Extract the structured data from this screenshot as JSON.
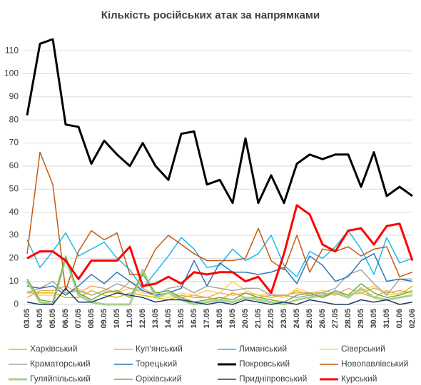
{
  "chart_data": {
    "type": "line",
    "title": "Кількість російських атак за напрямками",
    "categories": [
      "03.05",
      "04.05",
      "05.05",
      "06.05",
      "07.05",
      "08.05",
      "09.05",
      "10.05",
      "11.05",
      "12.05",
      "13.05",
      "14.05",
      "15.05",
      "16.05",
      "17.05",
      "18.05",
      "19.05",
      "20.05",
      "21.05",
      "22.05",
      "23.05",
      "24.05",
      "25.05",
      "26.05",
      "27.05",
      "28.05",
      "29.05",
      "30.05",
      "31.05",
      "01.06",
      "02.06"
    ],
    "ylim": [
      0,
      115
    ],
    "yticks": [
      0,
      10,
      20,
      30,
      40,
      50,
      60,
      70,
      80,
      90,
      100,
      110
    ],
    "grid": true,
    "series": [
      {
        "name": "Харківський",
        "color": "#e6b800",
        "width": 1.5,
        "values": [
          5,
          5,
          5,
          3,
          3,
          6,
          4,
          3,
          5,
          4,
          3,
          2,
          4,
          3,
          3,
          2,
          5,
          3,
          3,
          4,
          3,
          6,
          4,
          3,
          5,
          4,
          5,
          3,
          6,
          4,
          8
        ]
      },
      {
        "name": "Куп'янський",
        "color": "#f4a46a",
        "width": 1.5,
        "values": [
          3,
          6,
          6,
          8,
          5,
          8,
          7,
          5,
          10,
          7,
          4,
          5,
          3,
          4,
          3,
          5,
          4,
          5,
          4,
          3,
          4,
          5,
          5,
          5,
          4,
          7,
          5,
          7,
          5,
          6,
          5
        ]
      },
      {
        "name": "Лиманський",
        "color": "#1fb8e8",
        "width": 1.5,
        "values": [
          28,
          16,
          23,
          31,
          21,
          24,
          27,
          20,
          15,
          7,
          14,
          21,
          29,
          24,
          16,
          17,
          24,
          19,
          22,
          30,
          17,
          12,
          23,
          20,
          25,
          32,
          24,
          13,
          29,
          18,
          20
        ]
      },
      {
        "name": "Сіверський",
        "color": "#ffd34d",
        "width": 1.5,
        "values": [
          6,
          4,
          4,
          5,
          7,
          4,
          6,
          5,
          7,
          5,
          4,
          3,
          5,
          4,
          6,
          5,
          10,
          6,
          4,
          5,
          3,
          7,
          5,
          6,
          5,
          4,
          6,
          8,
          4,
          5,
          5
        ]
      },
      {
        "name": "Краматорський",
        "color": "#a6a6a6",
        "width": 1.5,
        "values": [
          5,
          7,
          10,
          5,
          6,
          4,
          6,
          9,
          7,
          6,
          4,
          7,
          8,
          5,
          8,
          7,
          6,
          7,
          7,
          4,
          4,
          3,
          4,
          5,
          7,
          13,
          15,
          9,
          4,
          11,
          11
        ]
      },
      {
        "name": "Торецький",
        "color": "#2e75b6",
        "width": 1.5,
        "values": [
          8,
          7,
          8,
          4,
          8,
          13,
          9,
          14,
          10,
          6,
          4,
          5,
          7,
          19,
          8,
          18,
          14,
          14,
          13,
          14,
          16,
          9,
          21,
          17,
          10,
          12,
          19,
          22,
          10,
          11,
          10
        ]
      },
      {
        "name": "Покровський",
        "color": "#000000",
        "width": 3,
        "values": [
          82,
          113,
          115,
          78,
          77,
          61,
          71,
          65,
          60,
          70,
          60,
          54,
          74,
          75,
          52,
          54,
          44,
          72,
          44,
          56,
          44,
          61,
          65,
          63,
          65,
          65,
          51,
          66,
          47,
          51,
          47
        ]
      },
      {
        "name": "Новопавлівський",
        "color": "#c55a11",
        "width": 1.5,
        "values": [
          22,
          66,
          52,
          6,
          23,
          32,
          28,
          31,
          13,
          13,
          24,
          30,
          26,
          22,
          19,
          19,
          19,
          20,
          33,
          19,
          15,
          30,
          14,
          24,
          23,
          25,
          21,
          24,
          25,
          12,
          14
        ]
      },
      {
        "name": "Гуляйпільський",
        "color": "#a9d18e",
        "width": 3,
        "values": [
          10,
          1,
          0,
          20,
          4,
          1,
          0,
          0,
          0,
          15,
          3,
          5,
          2,
          0,
          1,
          2,
          1,
          3,
          2,
          1,
          0,
          2,
          3,
          4,
          5,
          3,
          7,
          3,
          2,
          3,
          4
        ]
      },
      {
        "name": "Оріхівський",
        "color": "#70ad47",
        "width": 1.5,
        "values": [
          11,
          2,
          1,
          21,
          5,
          2,
          5,
          6,
          3,
          13,
          5,
          6,
          3,
          1,
          2,
          3,
          2,
          5,
          3,
          2,
          1,
          4,
          5,
          3,
          6,
          4,
          9,
          5,
          3,
          4,
          6
        ]
      },
      {
        "name": "Придніпровський",
        "color": "#1f3864",
        "width": 1.5,
        "values": [
          1,
          0,
          0,
          7,
          1,
          1,
          3,
          5,
          4,
          3,
          1,
          2,
          2,
          1,
          0,
          1,
          0,
          2,
          1,
          0,
          1,
          0,
          2,
          1,
          0,
          0,
          2,
          1,
          2,
          0,
          1
        ]
      },
      {
        "name": "Курський",
        "color": "#ff0000",
        "width": 3,
        "values": [
          20,
          23,
          23,
          19,
          11,
          19,
          19,
          19,
          25,
          8,
          9,
          12,
          9,
          14,
          13,
          14,
          14,
          10,
          12,
          5,
          22,
          43,
          39,
          26,
          23,
          32,
          33,
          26,
          34,
          35,
          19
        ]
      }
    ]
  }
}
